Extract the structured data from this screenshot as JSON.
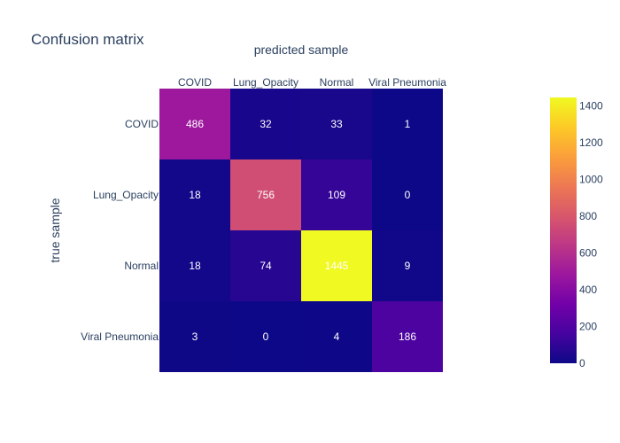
{
  "chart_data": {
    "type": "heatmap",
    "title": "Confusion matrix",
    "xlabel": "predicted sample",
    "ylabel": "true sample",
    "x_categories": [
      "COVID",
      "Lung_Opacity",
      "Normal",
      "Viral Pneumonia"
    ],
    "y_categories": [
      "COVID",
      "Lung_Opacity",
      "Normal",
      "Viral Pneumonia"
    ],
    "values": [
      [
        486,
        32,
        33,
        1
      ],
      [
        18,
        756,
        109,
        0
      ],
      [
        18,
        74,
        1445,
        9
      ],
      [
        3,
        0,
        4,
        186
      ]
    ],
    "colorscale": "plasma",
    "color_range": [
      0,
      1445
    ],
    "colorbar_ticks": [
      0,
      200,
      400,
      600,
      800,
      1000,
      1200,
      1400
    ],
    "x_axis_side": "top"
  }
}
